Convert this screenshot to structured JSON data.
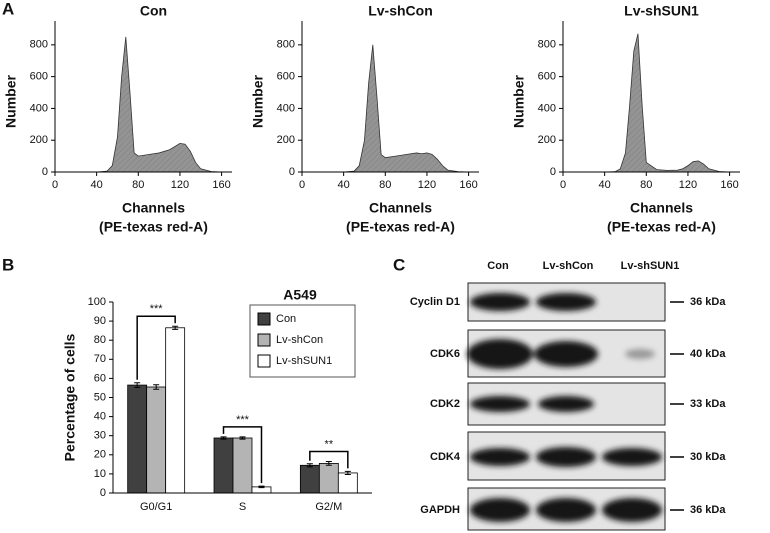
{
  "panels": {
    "a": "A",
    "b": "B",
    "c": "C"
  },
  "chart_data": [
    {
      "type": "area",
      "title": "Con",
      "xlabel": "Channels",
      "xlabel2": "(PE-texas red-A)",
      "ylabel": "Number",
      "x": [
        0,
        40,
        50,
        55,
        60,
        64,
        68,
        72,
        76,
        80,
        90,
        100,
        110,
        115,
        120,
        125,
        130,
        135,
        140,
        150,
        160
      ],
      "values": [
        0,
        0,
        5,
        40,
        220,
        600,
        850,
        500,
        120,
        100,
        110,
        120,
        140,
        160,
        180,
        175,
        130,
        60,
        20,
        3,
        0
      ],
      "color": "#707070",
      "xlim": [
        0,
        170
      ],
      "ylim": [
        0,
        950
      ],
      "xticks": [
        0,
        40,
        80,
        120,
        160
      ],
      "yticks": [
        0,
        200,
        400,
        600,
        800
      ]
    },
    {
      "type": "area",
      "title": "Lv-shCon",
      "xlabel": "Channels",
      "xlabel2": "(PE-texas red-A)",
      "ylabel": "Number",
      "x": [
        0,
        40,
        50,
        55,
        60,
        64,
        68,
        72,
        76,
        80,
        90,
        100,
        110,
        115,
        120,
        125,
        130,
        135,
        140,
        150,
        160
      ],
      "values": [
        0,
        0,
        5,
        40,
        200,
        560,
        800,
        470,
        110,
        90,
        100,
        110,
        120,
        115,
        120,
        110,
        80,
        40,
        12,
        2,
        0
      ],
      "color": "#707070",
      "xlim": [
        0,
        170
      ],
      "ylim": [
        0,
        950
      ],
      "xticks": [
        0,
        40,
        80,
        120,
        160
      ],
      "yticks": [
        0,
        200,
        400,
        600,
        800
      ]
    },
    {
      "type": "area",
      "title": "Lv-shSUN1",
      "xlabel": "Channels",
      "xlabel2": "(PE-texas red-A)",
      "ylabel": "Number",
      "x": [
        0,
        40,
        50,
        55,
        60,
        64,
        68,
        72,
        76,
        80,
        90,
        100,
        110,
        115,
        120,
        125,
        130,
        135,
        140,
        150,
        160
      ],
      "values": [
        0,
        0,
        2,
        20,
        120,
        420,
        760,
        870,
        420,
        60,
        15,
        10,
        12,
        20,
        40,
        65,
        70,
        50,
        20,
        3,
        0
      ],
      "color": "#707070",
      "xlim": [
        0,
        170
      ],
      "ylim": [
        0,
        950
      ],
      "xticks": [
        0,
        40,
        80,
        120,
        160
      ],
      "yticks": [
        0,
        200,
        400,
        600,
        800
      ]
    },
    {
      "type": "bar",
      "title": "A549",
      "ylabel": "Percentage of cells",
      "categories": [
        "G0/G1",
        "S",
        "G2/M"
      ],
      "series": [
        {
          "name": "Con",
          "color": "#404040",
          "values": [
            56.5,
            28.8,
            14.5
          ],
          "errors": [
            1.2,
            0.6,
            0.8
          ]
        },
        {
          "name": "Lv-shCon",
          "color": "#b4b4b4",
          "values": [
            55.5,
            28.8,
            15.5
          ],
          "errors": [
            1.2,
            0.6,
            1.0
          ]
        },
        {
          "name": "Lv-shSUN1",
          "color": "#ffffff",
          "values": [
            86.5,
            3.2,
            10.5
          ],
          "errors": [
            0.8,
            0.4,
            0.8
          ]
        }
      ],
      "annotations": [
        "***",
        "***",
        "**"
      ],
      "legend": "upper right",
      "ylim": [
        0,
        100
      ],
      "yticks": [
        0,
        10,
        20,
        30,
        40,
        50,
        60,
        70,
        80,
        90,
        100
      ]
    }
  ],
  "blot": {
    "columns": [
      "Con",
      "Lv-shCon",
      "Lv-shSUN1"
    ],
    "rows": [
      {
        "label": "Cyclin D1",
        "size": "36 kDa"
      },
      {
        "label": "CDK6",
        "size": "40 kDa"
      },
      {
        "label": "CDK2",
        "size": "33 kDa"
      },
      {
        "label": "CDK4",
        "size": "30 kDa"
      },
      {
        "label": "GAPDH",
        "size": "36 kDa"
      }
    ]
  }
}
